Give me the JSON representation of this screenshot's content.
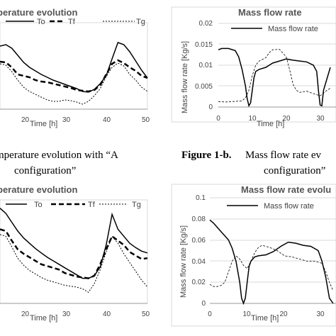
{
  "captions": {
    "left_line1": "mperature evolution with “A",
    "left_line2": "configuration”",
    "right_bold": "Figure 1-b.",
    "right_line1": "Mass flow rate ev",
    "right_line2": "configuration”"
  },
  "chart_data": [
    {
      "type": "line",
      "title": "perature evolution",
      "xlabel": "Time [h]",
      "ylabel": "",
      "xlim": [
        0,
        50
      ],
      "x_ticks": [
        "20",
        "30",
        "40",
        "50"
      ],
      "legend": [
        "To",
        "Tf",
        "Tg"
      ],
      "legend_placement": "top",
      "series": [
        {
          "name": "To",
          "style": "solid",
          "x": [
            0,
            2,
            4,
            6,
            8,
            10,
            12,
            14,
            16,
            18,
            20,
            22,
            24,
            26,
            28,
            30,
            32,
            34,
            36,
            38,
            40,
            42,
            44,
            46,
            48,
            50
          ],
          "y": [
            0.7,
            0.72,
            0.67,
            0.57,
            0.47,
            0.4,
            0.35,
            0.3,
            0.26,
            0.22,
            0.19,
            0.16,
            0.13,
            0.1,
            0.06,
            0.05,
            0.09,
            0.17,
            0.28,
            0.52,
            0.75,
            0.72,
            0.62,
            0.49,
            0.36,
            0.25
          ]
        },
        {
          "name": "Tf",
          "style": "dashed",
          "x": [
            0,
            2,
            4,
            6,
            8,
            10,
            12,
            14,
            16,
            18,
            20,
            22,
            24,
            26,
            28,
            30,
            32,
            34,
            36,
            38,
            40,
            42,
            44,
            46,
            48,
            50
          ],
          "y": [
            0.48,
            0.47,
            0.4,
            0.3,
            0.28,
            0.26,
            0.22,
            0.2,
            0.19,
            0.17,
            0.15,
            0.13,
            0.11,
            0.08,
            0.07,
            0.06,
            0.08,
            0.15,
            0.3,
            0.45,
            0.5,
            0.46,
            0.4,
            0.35,
            0.28,
            0.25
          ]
        },
        {
          "name": "Tg",
          "style": "dotted",
          "x": [
            0,
            2,
            4,
            6,
            8,
            10,
            12,
            14,
            16,
            18,
            20,
            22,
            24,
            26,
            28,
            30,
            32,
            34,
            36,
            38,
            40,
            42,
            44,
            46,
            48,
            50
          ],
          "y": [
            0.45,
            0.43,
            0.34,
            0.22,
            0.12,
            0.06,
            0.02,
            -0.02,
            -0.06,
            -0.08,
            -0.08,
            -0.06,
            -0.07,
            -0.09,
            -0.12,
            -0.08,
            0.0,
            0.1,
            0.27,
            0.4,
            0.46,
            0.42,
            0.3,
            0.22,
            0.12,
            0.06
          ]
        }
      ]
    },
    {
      "type": "line",
      "title": "Mass flow rate",
      "xlabel": "Time [h]",
      "ylabel": "Mass flow rate [Kg/s]",
      "xlim": [
        0,
        33
      ],
      "ylim": [
        0,
        0.02
      ],
      "x_ticks": [
        "0",
        "10",
        "20",
        "30"
      ],
      "y_ticks": [
        "0",
        "0.005",
        "0.01",
        "0.015",
        "0.02"
      ],
      "legend": [
        "Mass flow rate"
      ],
      "legend_placement": "top",
      "series": [
        {
          "name": "Mass flow rate",
          "style": "solid",
          "x": [
            0,
            1,
            3,
            5,
            6,
            7,
            8,
            8.5,
            9,
            9.5,
            10,
            10.5,
            11,
            12,
            14,
            16,
            18,
            20,
            22,
            24,
            26,
            28,
            29,
            29.5,
            30,
            30.5,
            31,
            33
          ],
          "y": [
            0.0137,
            0.014,
            0.014,
            0.0135,
            0.012,
            0.009,
            0.005,
            0.002,
            0.0003,
            0.001,
            0.004,
            0.007,
            0.0085,
            0.009,
            0.0095,
            0.0105,
            0.011,
            0.0115,
            0.0112,
            0.011,
            0.0108,
            0.01,
            0.0085,
            0.004,
            0.0005,
            0.0003,
            0.004,
            0.0095
          ]
        },
        {
          "name": "",
          "style": "dashed",
          "x": [
            0,
            2,
            4,
            6,
            7,
            8,
            9,
            10,
            11,
            12,
            14,
            15,
            16,
            18,
            20,
            21,
            22,
            23,
            24,
            26,
            28,
            30,
            31,
            32,
            33
          ],
          "y": [
            0.0013,
            0.0012,
            0.0013,
            0.0014,
            0.0015,
            0.0022,
            0.004,
            0.0075,
            0.01,
            0.011,
            0.0118,
            0.013,
            0.0137,
            0.0138,
            0.012,
            0.009,
            0.0055,
            0.004,
            0.0035,
            0.0038,
            0.0032,
            0.0027,
            0.0033,
            0.004,
            0.0045
          ]
        }
      ]
    },
    {
      "type": "line",
      "title": "perature evolution",
      "xlabel": "Time [h]",
      "ylabel": "",
      "xlim": [
        0,
        50
      ],
      "x_ticks": [
        "20",
        "30",
        "40",
        "50"
      ],
      "legend": [
        "To",
        "Tf",
        "Tg"
      ],
      "legend_placement": "top",
      "series": [
        {
          "name": "To",
          "style": "solid",
          "x": [
            0,
            2,
            4,
            6,
            8,
            10,
            12,
            14,
            16,
            18,
            20,
            22,
            24,
            26,
            28,
            30,
            32,
            34,
            36,
            38,
            40,
            42,
            44,
            46,
            48,
            50
          ],
          "y": [
            0.92,
            0.86,
            0.76,
            0.66,
            0.58,
            0.52,
            0.46,
            0.41,
            0.36,
            0.32,
            0.28,
            0.24,
            0.2,
            0.16,
            0.12,
            0.12,
            0.15,
            0.25,
            0.5,
            0.85,
            0.68,
            0.6,
            0.52,
            0.47,
            0.43,
            0.41
          ]
        },
        {
          "name": "Tf",
          "style": "dashed",
          "x": [
            0,
            2,
            4,
            6,
            8,
            10,
            12,
            14,
            16,
            18,
            20,
            22,
            24,
            26,
            28,
            30,
            32,
            34,
            36,
            38,
            40,
            42,
            44,
            46,
            48,
            50
          ],
          "y": [
            0.68,
            0.66,
            0.55,
            0.45,
            0.4,
            0.36,
            0.32,
            0.28,
            0.26,
            0.24,
            0.22,
            0.18,
            0.16,
            0.14,
            0.13,
            0.12,
            0.15,
            0.28,
            0.45,
            0.6,
            0.55,
            0.5,
            0.42,
            0.38,
            0.34,
            0.35
          ]
        },
        {
          "name": "Tg",
          "style": "dotted",
          "x": [
            0,
            2,
            4,
            6,
            8,
            10,
            12,
            14,
            16,
            18,
            20,
            22,
            24,
            26,
            28,
            30,
            32,
            34,
            36,
            38,
            40,
            42,
            44,
            46,
            48,
            50
          ],
          "y": [
            0.62,
            0.6,
            0.48,
            0.35,
            0.27,
            0.21,
            0.17,
            0.13,
            0.1,
            0.08,
            0.06,
            0.04,
            0.03,
            0.02,
            0.0,
            -0.04,
            0.06,
            0.22,
            0.42,
            0.6,
            0.52,
            0.4,
            0.3,
            0.2,
            0.1,
            0.02
          ]
        }
      ]
    },
    {
      "type": "line",
      "title": "Mass flow rate evolu",
      "xlabel": "Time [h]",
      "ylabel": "Mass flow rate [Kg/s]",
      "xlim": [
        0,
        33
      ],
      "ylim": [
        0,
        0.1
      ],
      "x_ticks": [
        "0",
        "10",
        "20",
        "30"
      ],
      "y_ticks": [
        "0",
        "0.02",
        "0.04",
        "0.06",
        "0.08",
        "0.1"
      ],
      "legend": [
        "Mass flow rate"
      ],
      "legend_placement": "top",
      "series": [
        {
          "name": "Mass flow rate",
          "style": "solid",
          "x": [
            0,
            1,
            2,
            3,
            4,
            5,
            6,
            7,
            8,
            8.5,
            9,
            9.5,
            10,
            10.5,
            11,
            12,
            13,
            15,
            17,
            19,
            21,
            23,
            25,
            27,
            29,
            30,
            31,
            32,
            33
          ],
          "y": [
            0.079,
            0.076,
            0.072,
            0.068,
            0.064,
            0.06,
            0.052,
            0.04,
            0.02,
            0.005,
            0.0,
            0.005,
            0.02,
            0.035,
            0.04,
            0.044,
            0.045,
            0.046,
            0.049,
            0.054,
            0.058,
            0.057,
            0.055,
            0.054,
            0.05,
            0.04,
            0.025,
            0.005,
            0.0
          ]
        },
        {
          "name": "",
          "style": "dashed",
          "x": [
            0,
            1,
            2,
            3,
            4,
            5,
            6,
            7,
            8,
            9,
            10,
            11,
            12,
            13,
            14,
            16,
            18,
            20,
            22,
            24,
            26,
            28,
            30,
            31,
            32,
            33
          ],
          "y": [
            0.018,
            0.016,
            0.016,
            0.017,
            0.02,
            0.03,
            0.04,
            0.045,
            0.042,
            0.036,
            0.033,
            0.04,
            0.048,
            0.053,
            0.055,
            0.053,
            0.05,
            0.045,
            0.044,
            0.042,
            0.04,
            0.04,
            0.038,
            0.03,
            0.02,
            0.012
          ]
        }
      ]
    }
  ]
}
